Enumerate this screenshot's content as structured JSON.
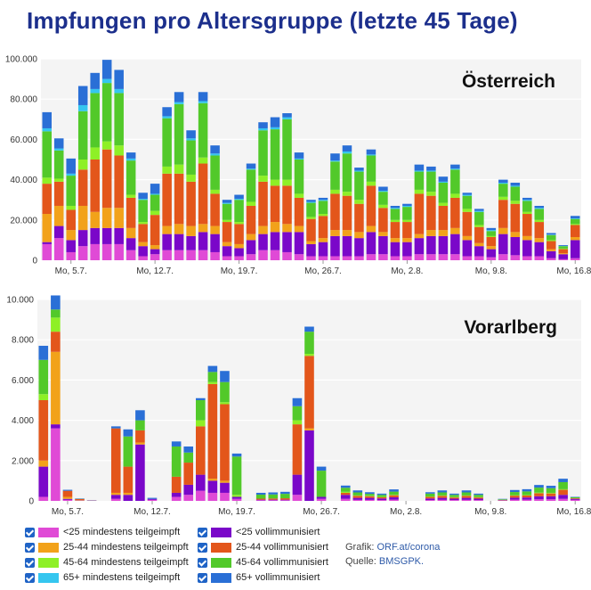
{
  "title": "Impfungen pro Altersgruppe (letzte 45 Tage)",
  "colors": {
    "u25_teil": "#e04ad6",
    "u25_voll": "#7a07c9",
    "a2544_teil": "#f2a21a",
    "a2544_voll": "#e3561b",
    "a4564_teil": "#8ef026",
    "a4564_voll": "#52c92a",
    "a65_teil": "#35c6ef",
    "a65_voll": "#2a6fd6"
  },
  "legend": {
    "items": [
      {
        "key": "u25_teil",
        "label": "<25 mindestens teilgeimpft"
      },
      {
        "key": "a2544_teil",
        "label": "25-44 mindestens teilgeimpft"
      },
      {
        "key": "a4564_teil",
        "label": "45-64 mindestens teilgeimpft"
      },
      {
        "key": "a65_teil",
        "label": "65+ mindestens teilgeimpft"
      },
      {
        "key": "u25_voll",
        "label": "<25 vollimmunisiert"
      },
      {
        "key": "a2544_voll",
        "label": "25-44 vollimmunisiert"
      },
      {
        "key": "a4564_voll",
        "label": "45-64 vollimmunisiert"
      },
      {
        "key": "a65_voll",
        "label": "65+ vollimmunisiert"
      }
    ]
  },
  "source": {
    "grafik_label": "Grafik:",
    "grafik_value": "ORF.at/corona",
    "quelle_label": "Quelle:",
    "quelle_value": "BMSGPK."
  },
  "chart_data": [
    {
      "type": "bar",
      "stacked": true,
      "title": "Österreich",
      "ylim": [
        0,
        100000
      ],
      "yticks": [
        "0",
        "20.000",
        "40.000",
        "60.000",
        "80.000",
        "100.000"
      ],
      "xtick_labels": [
        "Mo, 5.7.",
        "Mo, 12.7.",
        "Mo, 19.7.",
        "Mo, 26.7.",
        "Mo, 2.8.",
        "Mo, 9.8.",
        "Mo, 16.8."
      ],
      "xtick_positions": [
        3,
        10,
        17,
        24,
        31,
        38,
        45
      ],
      "grid": true,
      "series_keys": [
        "u25_teil",
        "u25_voll",
        "a2544_teil",
        "a2544_voll",
        "a4564_teil",
        "a4564_voll",
        "a65_teil",
        "a65_voll"
      ],
      "totals": [
        73500,
        60500,
        50500,
        86500,
        93000,
        99500,
        94500,
        53500,
        33500,
        38000,
        76000,
        83500,
        64500,
        83500,
        57000,
        30000,
        32500,
        48000,
        68500,
        71000,
        73000,
        53500,
        30000,
        31000,
        53000,
        57000,
        46000,
        55000,
        36500,
        27000,
        28000,
        47500,
        46500,
        41500,
        47500,
        33500,
        25500,
        16000,
        40000,
        38500,
        31000,
        27000,
        13500,
        7500,
        22000
      ],
      "segments": [
        [
          8000,
          1000,
          14000,
          15000,
          3000,
          23000,
          1500,
          8000
        ],
        [
          11000,
          6000,
          10000,
          12000,
          1500,
          14000,
          1000,
          5000
        ],
        [
          4000,
          6000,
          5000,
          10000,
          2000,
          15000,
          1000,
          7500
        ],
        [
          7000,
          8000,
          12000,
          18000,
          5000,
          24000,
          3000,
          9500
        ],
        [
          8000,
          8000,
          8000,
          26000,
          6000,
          27000,
          2000,
          8000
        ],
        [
          8000,
          8000,
          10000,
          29000,
          4000,
          29000,
          2000,
          9500
        ],
        [
          8000,
          8000,
          10000,
          26000,
          5000,
          26000,
          2000,
          9500
        ],
        [
          5000,
          6000,
          5000,
          15000,
          1500,
          17000,
          1000,
          3000
        ],
        [
          2000,
          5000,
          2000,
          9000,
          1000,
          11000,
          500,
          3000
        ],
        [
          3000,
          2500,
          2000,
          15000,
          2000,
          8000,
          500,
          5000
        ],
        [
          5000,
          8000,
          4000,
          26000,
          3500,
          24000,
          1000,
          4500
        ],
        [
          5000,
          8000,
          5000,
          25000,
          4500,
          30000,
          1000,
          5000
        ],
        [
          5000,
          7000,
          5000,
          22000,
          3500,
          17000,
          1000,
          4000
        ],
        [
          5000,
          9000,
          4000,
          30000,
          3000,
          27000,
          1000,
          4500
        ],
        [
          4000,
          9000,
          4000,
          16000,
          2000,
          17000,
          1000,
          4000
        ],
        [
          2000,
          5000,
          2000,
          10000,
          1000,
          8000,
          500,
          1500
        ],
        [
          2000,
          4000,
          2000,
          10000,
          1000,
          11000,
          500,
          2000
        ],
        [
          3000,
          7000,
          3000,
          14000,
          2000,
          16000,
          500,
          2500
        ],
        [
          5000,
          8000,
          4000,
          22000,
          3000,
          22500,
          1000,
          3000
        ],
        [
          5000,
          9000,
          5000,
          18000,
          3000,
          25000,
          1000,
          5000
        ],
        [
          4000,
          10000,
          4000,
          19000,
          3000,
          30000,
          1000,
          2000
        ],
        [
          3000,
          11000,
          3000,
          14000,
          2000,
          17000,
          500,
          3000
        ],
        [
          2000,
          6000,
          1500,
          11000,
          1000,
          7000,
          500,
          1000
        ],
        [
          2000,
          7000,
          2000,
          11000,
          1000,
          6500,
          500,
          1000
        ],
        [
          2000,
          10000,
          3000,
          18000,
          2000,
          14000,
          500,
          3500
        ],
        [
          2000,
          10000,
          3000,
          17000,
          2000,
          19000,
          1000,
          3000
        ],
        [
          2000,
          9000,
          3000,
          14000,
          2000,
          14000,
          500,
          1500
        ],
        [
          3000,
          11000,
          3000,
          20000,
          2000,
          13000,
          500,
          2500
        ],
        [
          3000,
          9000,
          2000,
          12000,
          1500,
          6500,
          500,
          2000
        ],
        [
          2000,
          7000,
          2000,
          8000,
          1000,
          5500,
          500,
          1000
        ],
        [
          2000,
          7000,
          2000,
          8000,
          1000,
          6500,
          500,
          1000
        ],
        [
          3000,
          8000,
          2000,
          20000,
          2000,
          9000,
          500,
          3000
        ],
        [
          3000,
          9000,
          3000,
          17000,
          2000,
          10000,
          500,
          2000
        ],
        [
          3000,
          9000,
          3000,
          12000,
          1500,
          10000,
          500,
          2500
        ],
        [
          3000,
          10000,
          3000,
          15000,
          2000,
          12000,
          500,
          2000
        ],
        [
          2000,
          8000,
          2000,
          12000,
          1500,
          6500,
          500,
          1000
        ],
        [
          2000,
          5000,
          1500,
          8000,
          1000,
          6500,
          500,
          1000
        ],
        [
          1500,
          4000,
          1500,
          4500,
          500,
          2500,
          500,
          1000
        ],
        [
          3000,
          10000,
          3000,
          14000,
          1500,
          6500,
          500,
          1500
        ],
        [
          2500,
          9000,
          2500,
          14000,
          1500,
          7000,
          500,
          1500
        ],
        [
          2000,
          8000,
          2000,
          11000,
          1000,
          5500,
          500,
          1000
        ],
        [
          2000,
          7000,
          2000,
          8000,
          1000,
          5500,
          500,
          1000
        ],
        [
          1000,
          3500,
          1000,
          4000,
          500,
          2500,
          200,
          800
        ],
        [
          500,
          2500,
          500,
          2000,
          300,
          1200,
          100,
          400
        ],
        [
          1000,
          9000,
          1500,
          6000,
          500,
          2500,
          300,
          1200
        ]
      ]
    },
    {
      "type": "bar",
      "stacked": true,
      "title": "Vorarlberg",
      "ylim": [
        0,
        10000
      ],
      "yticks": [
        "0",
        "2.000",
        "4.000",
        "6.000",
        "8.000",
        "10.000"
      ],
      "xtick_labels": [
        "Mo, 5.7.",
        "Mo, 12.7.",
        "Mo, 19.7.",
        "Mo, 26.7.",
        "Mo, 2.8.",
        "Mo, 9.8.",
        "Mo, 16.8."
      ],
      "xtick_positions": [
        3,
        10,
        17,
        24,
        31,
        38,
        45
      ],
      "grid": true,
      "series_keys": [
        "u25_teil",
        "u25_voll",
        "a2544_teil",
        "a2544_voll",
        "a4564_teil",
        "a4564_voll",
        "a65_teil",
        "a65_voll"
      ],
      "totals": [
        7700,
        10200,
        550,
        120,
        30,
        0,
        3700,
        3550,
        4500,
        150,
        0,
        2950,
        2700,
        5100,
        6700,
        6450,
        2350,
        0,
        400,
        420,
        450,
        5100,
        8650,
        1700,
        0,
        760,
        520,
        430,
        360,
        570,
        0,
        0,
        430,
        520,
        360,
        520,
        360,
        0,
        100,
        540,
        580,
        790,
        750,
        1100,
        200
      ],
      "segments": [
        [
          200,
          1500,
          300,
          3000,
          300,
          1700,
          0,
          700
        ],
        [
          3600,
          200,
          3600,
          1000,
          700,
          400,
          0,
          700
        ],
        [
          50,
          50,
          100,
          300,
          0,
          0,
          0,
          50
        ],
        [
          10,
          10,
          20,
          50,
          0,
          10,
          0,
          20
        ],
        [
          0,
          10,
          0,
          10,
          0,
          0,
          0,
          10
        ],
        [
          0,
          0,
          0,
          0,
          0,
          0,
          0,
          0
        ],
        [
          100,
          200,
          100,
          3200,
          0,
          0,
          0,
          100
        ],
        [
          0,
          300,
          100,
          1300,
          0,
          1500,
          0,
          350
        ],
        [
          0,
          2800,
          100,
          600,
          0,
          500,
          0,
          500
        ],
        [
          50,
          50,
          0,
          0,
          0,
          0,
          0,
          50
        ],
        [
          0,
          0,
          0,
          0,
          0,
          0,
          0,
          0
        ],
        [
          200,
          200,
          0,
          800,
          0,
          1500,
          0,
          250
        ],
        [
          300,
          500,
          0,
          1100,
          0,
          500,
          0,
          300
        ],
        [
          500,
          800,
          0,
          2400,
          300,
          1000,
          0,
          100
        ],
        [
          400,
          600,
          100,
          4700,
          100,
          500,
          0,
          300
        ],
        [
          400,
          500,
          100,
          3800,
          100,
          1000,
          0,
          550
        ],
        [
          100,
          100,
          0,
          0,
          100,
          1900,
          0,
          150
        ],
        [
          0,
          0,
          0,
          0,
          0,
          0,
          0,
          0
        ],
        [
          30,
          30,
          0,
          50,
          0,
          200,
          0,
          90
        ],
        [
          30,
          30,
          0,
          60,
          0,
          200,
          0,
          100
        ],
        [
          30,
          30,
          0,
          70,
          0,
          220,
          0,
          100
        ],
        [
          300,
          1000,
          0,
          2500,
          200,
          700,
          0,
          400
        ],
        [
          0,
          3500,
          100,
          3600,
          100,
          1100,
          0,
          250
        ],
        [
          100,
          100,
          0,
          0,
          0,
          1300,
          0,
          200
        ],
        [
          0,
          0,
          0,
          0,
          0,
          0,
          0,
          0
        ],
        [
          100,
          200,
          0,
          100,
          50,
          200,
          0,
          110
        ],
        [
          50,
          100,
          0,
          100,
          20,
          150,
          0,
          100
        ],
        [
          50,
          100,
          0,
          80,
          20,
          100,
          0,
          80
        ],
        [
          40,
          80,
          0,
          60,
          20,
          100,
          0,
          60
        ],
        [
          60,
          120,
          0,
          100,
          20,
          160,
          0,
          110
        ],
        [
          0,
          0,
          0,
          0,
          0,
          0,
          0,
          0
        ],
        [
          0,
          0,
          0,
          0,
          0,
          0,
          0,
          0
        ],
        [
          40,
          80,
          0,
          80,
          20,
          140,
          0,
          70
        ],
        [
          50,
          100,
          0,
          100,
          20,
          150,
          0,
          100
        ],
        [
          40,
          70,
          0,
          60,
          20,
          110,
          0,
          60
        ],
        [
          50,
          100,
          0,
          100,
          20,
          150,
          0,
          100
        ],
        [
          40,
          70,
          0,
          60,
          20,
          110,
          0,
          60
        ],
        [
          0,
          0,
          0,
          0,
          0,
          0,
          0,
          0
        ],
        [
          10,
          20,
          0,
          20,
          0,
          30,
          0,
          20
        ],
        [
          60,
          100,
          0,
          100,
          20,
          160,
          0,
          100
        ],
        [
          60,
          110,
          0,
          100,
          20,
          180,
          0,
          110
        ],
        [
          80,
          150,
          0,
          150,
          30,
          250,
          0,
          130
        ],
        [
          80,
          150,
          0,
          140,
          30,
          230,
          0,
          120
        ],
        [
          100,
          200,
          0,
          250,
          30,
          350,
          0,
          170
        ],
        [
          50,
          50,
          0,
          30,
          0,
          50,
          0,
          20
        ]
      ]
    }
  ]
}
